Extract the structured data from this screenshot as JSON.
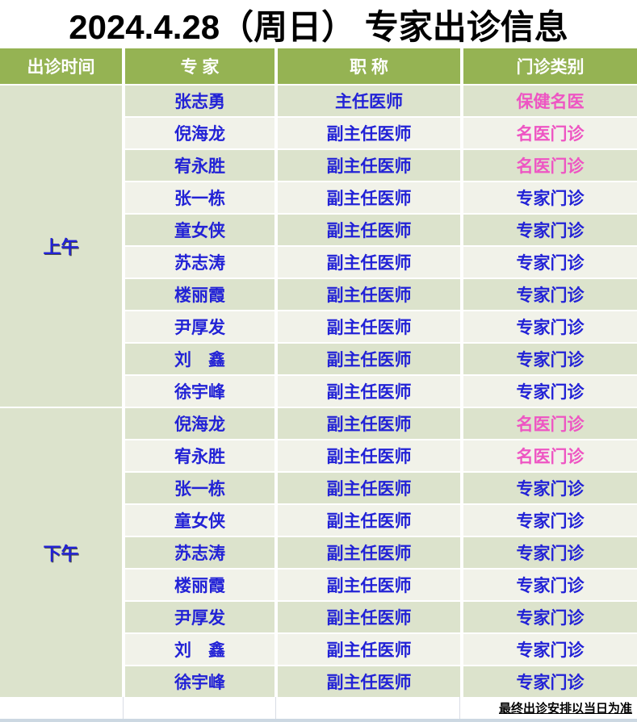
{
  "title": "2024.4.28（周日） 专家出诊信息",
  "header": {
    "time": "出诊时间",
    "expert": "专 家",
    "job_title": "职 称",
    "category": "门诊类别"
  },
  "sections": [
    {
      "time": "上午",
      "rows": [
        {
          "name": "张志勇",
          "job_title": "主任医师",
          "category": "保健名医",
          "category_color": "pink"
        },
        {
          "name": "倪海龙",
          "job_title": "副主任医师",
          "category": "名医门诊",
          "category_color": "pink"
        },
        {
          "name": "宥永胜",
          "job_title": "副主任医师",
          "category": "名医门诊",
          "category_color": "pink"
        },
        {
          "name": "张一栋",
          "job_title": "副主任医师",
          "category": "专家门诊",
          "category_color": "blue"
        },
        {
          "name": "童女侠",
          "job_title": "副主任医师",
          "category": "专家门诊",
          "category_color": "blue"
        },
        {
          "name": "苏志涛",
          "job_title": "副主任医师",
          "category": "专家门诊",
          "category_color": "blue"
        },
        {
          "name": "楼丽霞",
          "job_title": "副主任医师",
          "category": "专家门诊",
          "category_color": "blue"
        },
        {
          "name": "尹厚发",
          "job_title": "副主任医师",
          "category": "专家门诊",
          "category_color": "blue"
        },
        {
          "name": "刘　鑫",
          "job_title": "副主任医师",
          "category": "专家门诊",
          "category_color": "blue"
        },
        {
          "name": "徐宇峰",
          "job_title": "副主任医师",
          "category": "专家门诊",
          "category_color": "blue"
        }
      ]
    },
    {
      "time": "下午",
      "rows": [
        {
          "name": "倪海龙",
          "job_title": "副主任医师",
          "category": "名医门诊",
          "category_color": "pink"
        },
        {
          "name": "宥永胜",
          "job_title": "副主任医师",
          "category": "名医门诊",
          "category_color": "pink"
        },
        {
          "name": "张一栋",
          "job_title": "副主任医师",
          "category": "专家门诊",
          "category_color": "blue"
        },
        {
          "name": "童女侠",
          "job_title": "副主任医师",
          "category": "专家门诊",
          "category_color": "blue"
        },
        {
          "name": "苏志涛",
          "job_title": "副主任医师",
          "category": "专家门诊",
          "category_color": "blue"
        },
        {
          "name": "楼丽霞",
          "job_title": "副主任医师",
          "category": "专家门诊",
          "category_color": "blue"
        },
        {
          "name": "尹厚发",
          "job_title": "副主任医师",
          "category": "专家门诊",
          "category_color": "blue"
        },
        {
          "name": "刘　鑫",
          "job_title": "副主任医师",
          "category": "专家门诊",
          "category_color": "blue"
        },
        {
          "name": "徐宇峰",
          "job_title": "副主任医师",
          "category": "专家门诊",
          "category_color": "blue"
        }
      ]
    }
  ],
  "footer": {
    "note": "最终出诊安排以当日为准"
  },
  "colors": {
    "header_bg": "#95b353",
    "row_dark": "#dce3cc",
    "row_light": "#f1f2e9",
    "time_col_bg": "#dce3cc",
    "text_blue": "#2222d6",
    "text_pink": "#ee55c3",
    "bottom_strip": "#ccd8e2"
  }
}
